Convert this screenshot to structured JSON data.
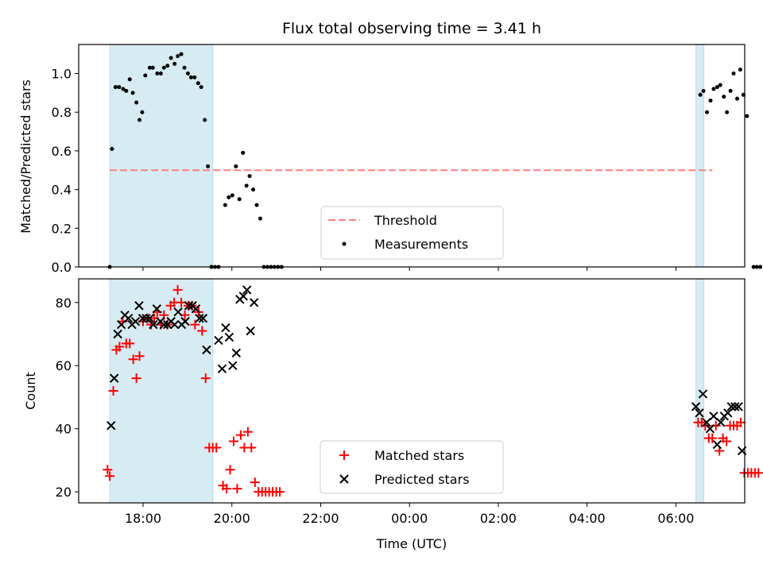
{
  "chart_data": {
    "title": "Flux total observing time = 3.41 h",
    "xlabel": "Time (UTC)",
    "x_ticks": [
      "18:00",
      "20:00",
      "22:00",
      "00:00",
      "02:00",
      "04:00",
      "06:00"
    ],
    "x_tick_hours": [
      18,
      20,
      22,
      24,
      26,
      28,
      30
    ],
    "xlim": [
      16.55,
      31.55
    ],
    "shaded_intervals": [
      [
        17.25,
        19.57
      ],
      [
        30.45,
        30.63
      ]
    ],
    "shade_color": "#add8e6",
    "panels": [
      {
        "type": "scatter",
        "ylabel": "Matched/Predicted stars",
        "ylim": [
          0,
          1.15
        ],
        "yticks": [
          0.0,
          0.2,
          0.4,
          0.6,
          0.8,
          1.0
        ],
        "ytick_labels": [
          "0.0",
          "0.2",
          "0.4",
          "0.6",
          "0.8",
          "1.0"
        ],
        "threshold": {
          "name": "Threshold",
          "value": 0.5,
          "x_range": [
            17.25,
            30.82
          ],
          "color": "#ff7f7f"
        },
        "series": [
          {
            "name": "Measurements",
            "marker": "dot",
            "color": "#000000",
            "points": [
              [
                17.25,
                0
              ],
              [
                17.3,
                0.61
              ],
              [
                17.38,
                0.93
              ],
              [
                17.46,
                0.93
              ],
              [
                17.55,
                0.92
              ],
              [
                17.62,
                0.91
              ],
              [
                17.7,
                0.97
              ],
              [
                17.77,
                0.9
              ],
              [
                17.85,
                0.85
              ],
              [
                17.92,
                0.76
              ],
              [
                17.98,
                0.8
              ],
              [
                18.05,
                0.99
              ],
              [
                18.15,
                1.03
              ],
              [
                18.22,
                1.03
              ],
              [
                18.32,
                1.0
              ],
              [
                18.4,
                1.0
              ],
              [
                18.47,
                1.03
              ],
              [
                18.55,
                1.04
              ],
              [
                18.63,
                1.08
              ],
              [
                18.71,
                1.05
              ],
              [
                18.78,
                1.09
              ],
              [
                18.86,
                1.1
              ],
              [
                18.93,
                1.03
              ],
              [
                19.01,
                1.0
              ],
              [
                19.08,
                0.98
              ],
              [
                19.16,
                0.98
              ],
              [
                19.24,
                0.95
              ],
              [
                19.31,
                0.93
              ],
              [
                19.39,
                0.76
              ],
              [
                19.46,
                0.52
              ],
              [
                19.54,
                0
              ],
              [
                19.62,
                0
              ],
              [
                19.7,
                0
              ],
              [
                19.85,
                0.32
              ],
              [
                19.93,
                0.36
              ],
              [
                20.01,
                0.37
              ],
              [
                20.09,
                0.52
              ],
              [
                20.17,
                0.35
              ],
              [
                20.25,
                0.59
              ],
              [
                20.33,
                0.42
              ],
              [
                20.4,
                0.47
              ],
              [
                20.48,
                0.4
              ],
              [
                20.56,
                0.32
              ],
              [
                20.64,
                0.25
              ],
              [
                20.72,
                0
              ],
              [
                20.8,
                0
              ],
              [
                20.88,
                0
              ],
              [
                20.96,
                0
              ],
              [
                21.04,
                0
              ],
              [
                21.12,
                0
              ],
              [
                30.55,
                0.89
              ],
              [
                30.62,
                0.91
              ],
              [
                30.7,
                0.8
              ],
              [
                30.78,
                0.86
              ],
              [
                30.85,
                0.92
              ],
              [
                30.93,
                0.93
              ],
              [
                31.0,
                0.94
              ],
              [
                31.08,
                0.88
              ],
              [
                31.15,
                0.8
              ],
              [
                31.23,
                0.91
              ],
              [
                31.3,
                1.0
              ],
              [
                31.38,
                0.87
              ],
              [
                31.45,
                1.02
              ],
              [
                31.52,
                0.89
              ],
              [
                31.6,
                0.78
              ],
              [
                31.75,
                0
              ],
              [
                31.82,
                0
              ],
              [
                31.9,
                0
              ]
            ]
          }
        ],
        "legend": {
          "location": "lower-center",
          "entries": [
            "Threshold",
            "Measurements"
          ]
        }
      },
      {
        "type": "scatter",
        "ylabel": "Count",
        "ylim": [
          16.5,
          87.5
        ],
        "yticks": [
          20,
          40,
          60,
          80
        ],
        "ytick_labels": [
          "20",
          "40",
          "60",
          "80"
        ],
        "series": [
          {
            "name": "Matched stars",
            "marker": "plus",
            "color": "#ff0000",
            "points": [
              [
                17.2,
                27
              ],
              [
                17.25,
                25
              ],
              [
                17.33,
                52
              ],
              [
                17.4,
                65
              ],
              [
                17.47,
                66
              ],
              [
                17.54,
                74
              ],
              [
                17.62,
                67
              ],
              [
                17.7,
                67
              ],
              [
                17.78,
                62
              ],
              [
                17.85,
                56
              ],
              [
                17.92,
                63
              ],
              [
                18.0,
                74
              ],
              [
                18.1,
                75
              ],
              [
                18.18,
                73
              ],
              [
                18.25,
                75
              ],
              [
                18.32,
                77
              ],
              [
                18.4,
                73
              ],
              [
                18.47,
                76
              ],
              [
                18.55,
                73
              ],
              [
                18.62,
                79
              ],
              [
                18.7,
                80
              ],
              [
                18.78,
                84
              ],
              [
                18.86,
                80
              ],
              [
                18.94,
                76
              ],
              [
                19.02,
                79
              ],
              [
                19.1,
                79
              ],
              [
                19.17,
                73
              ],
              [
                19.25,
                77
              ],
              [
                19.33,
                71
              ],
              [
                19.41,
                56
              ],
              [
                19.49,
                34
              ],
              [
                19.57,
                34
              ],
              [
                19.65,
                34
              ],
              [
                19.8,
                22
              ],
              [
                19.88,
                21
              ],
              [
                19.96,
                27
              ],
              [
                20.04,
                36
              ],
              [
                20.12,
                21
              ],
              [
                20.2,
                38
              ],
              [
                20.28,
                34
              ],
              [
                20.36,
                39
              ],
              [
                20.44,
                34
              ],
              [
                20.52,
                23
              ],
              [
                20.6,
                20
              ],
              [
                20.68,
                20
              ],
              [
                20.76,
                20
              ],
              [
                20.84,
                20
              ],
              [
                20.92,
                20
              ],
              [
                21.0,
                20
              ],
              [
                21.08,
                20
              ],
              [
                30.5,
                42
              ],
              [
                30.58,
                42
              ],
              [
                30.66,
                41
              ],
              [
                30.74,
                37
              ],
              [
                30.82,
                37
              ],
              [
                30.9,
                41
              ],
              [
                30.98,
                33
              ],
              [
                31.06,
                37
              ],
              [
                31.14,
                36
              ],
              [
                31.22,
                41
              ],
              [
                31.3,
                41
              ],
              [
                31.38,
                41
              ],
              [
                31.46,
                42
              ],
              [
                31.54,
                26
              ],
              [
                31.62,
                26
              ],
              [
                31.7,
                26
              ],
              [
                31.78,
                26
              ],
              [
                31.86,
                26
              ]
            ]
          },
          {
            "name": "Predicted stars",
            "marker": "x",
            "color": "#000000",
            "points": [
              [
                17.28,
                41
              ],
              [
                17.35,
                56
              ],
              [
                17.43,
                70
              ],
              [
                17.51,
                73
              ],
              [
                17.59,
                76
              ],
              [
                17.67,
                75
              ],
              [
                17.75,
                73
              ],
              [
                17.83,
                74
              ],
              [
                17.91,
                79
              ],
              [
                17.99,
                75
              ],
              [
                18.07,
                75
              ],
              [
                18.15,
                75
              ],
              [
                18.23,
                73
              ],
              [
                18.31,
                78
              ],
              [
                18.39,
                74
              ],
              [
                18.47,
                73
              ],
              [
                18.55,
                73
              ],
              [
                18.63,
                74
              ],
              [
                18.71,
                73
              ],
              [
                18.79,
                77
              ],
              [
                18.87,
                73
              ],
              [
                18.95,
                74
              ],
              [
                19.03,
                79
              ],
              [
                19.11,
                79
              ],
              [
                19.19,
                78
              ],
              [
                19.27,
                75
              ],
              [
                19.35,
                75
              ],
              [
                19.43,
                65
              ],
              [
                19.7,
                68
              ],
              [
                19.78,
                59
              ],
              [
                19.86,
                72
              ],
              [
                19.94,
                69
              ],
              [
                20.02,
                60
              ],
              [
                20.1,
                64
              ],
              [
                20.18,
                81
              ],
              [
                20.26,
                82
              ],
              [
                20.34,
                84
              ],
              [
                20.42,
                71
              ],
              [
                20.5,
                80
              ],
              [
                30.45,
                47
              ],
              [
                30.53,
                45
              ],
              [
                30.61,
                51
              ],
              [
                30.69,
                42
              ],
              [
                30.77,
                40
              ],
              [
                30.85,
                44
              ],
              [
                30.93,
                35
              ],
              [
                31.01,
                42
              ],
              [
                31.09,
                44
              ],
              [
                31.17,
                45
              ],
              [
                31.25,
                47
              ],
              [
                31.33,
                47
              ],
              [
                31.41,
                47
              ],
              [
                31.49,
                33
              ]
            ]
          }
        ],
        "legend": {
          "location": "lower-center",
          "entries": [
            "Matched stars",
            "Predicted stars"
          ]
        }
      }
    ]
  }
}
